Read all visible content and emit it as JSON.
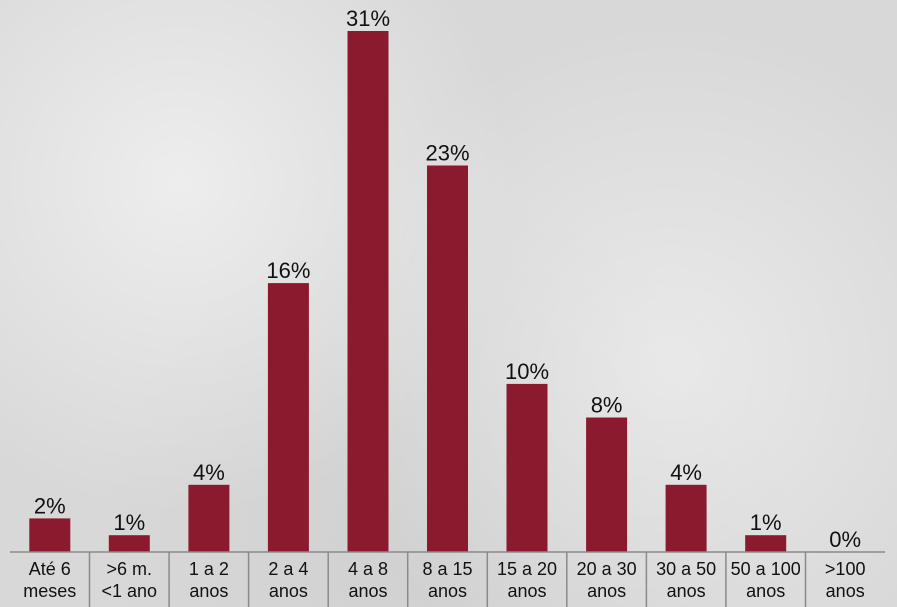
{
  "chart_data": {
    "type": "bar",
    "categories": [
      [
        "Até 6",
        "meses"
      ],
      [
        ">6 m.",
        "<1 ano"
      ],
      [
        "1 a 2",
        "anos"
      ],
      [
        "2 a 4",
        "anos"
      ],
      [
        "4 a 8",
        "anos"
      ],
      [
        "8 a 15",
        "anos"
      ],
      [
        "15 a 20",
        "anos"
      ],
      [
        "20 a 30",
        "anos"
      ],
      [
        "30 a 50",
        "anos"
      ],
      [
        "50 a 100",
        "anos"
      ],
      [
        ">100",
        "anos"
      ]
    ],
    "values": [
      2,
      1,
      4,
      16,
      31,
      23,
      10,
      8,
      4,
      1,
      0
    ],
    "value_labels": [
      "2%",
      "1%",
      "4%",
      "16%",
      "31%",
      "23%",
      "10%",
      "8%",
      "4%",
      "1%",
      "0%"
    ],
    "title": "",
    "xlabel": "",
    "ylabel": "",
    "ylim": [
      0,
      31
    ],
    "grid": false,
    "legend": "none",
    "bar_color": "#8b1a2e",
    "axis_color": "#8a8a8a"
  }
}
